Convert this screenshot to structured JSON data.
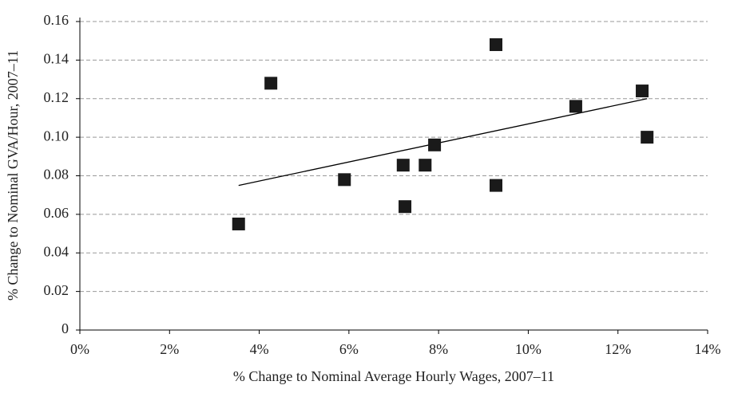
{
  "chart_data": {
    "type": "scatter",
    "x_label": "% Change to Nominal Average Hourly Wages, 2007–11",
    "y_label": "% Change to Nominal GVA/Hour, 2007–11",
    "x": [
      3.54,
      4.26,
      5.9,
      7.21,
      7.25,
      7.7,
      7.91,
      9.28,
      9.28,
      11.06,
      12.54,
      12.65
    ],
    "values": [
      0.055,
      0.128,
      0.078,
      0.0855,
      0.064,
      0.0855,
      0.096,
      0.148,
      0.075,
      0.116,
      0.124,
      0.1
    ],
    "color": "#1a1a1a",
    "trend_line": {
      "x": [
        3.54,
        12.65
      ],
      "y": [
        0.075,
        0.12
      ],
      "color": "#000000"
    },
    "xlim": [
      0,
      14
    ],
    "xticks": [
      {
        "value": 0,
        "label": "0%"
      },
      {
        "value": 2,
        "label": "2%"
      },
      {
        "value": 4,
        "label": "4%"
      },
      {
        "value": 6,
        "label": "6%"
      },
      {
        "value": 8,
        "label": "8%"
      },
      {
        "value": 10,
        "label": "10%"
      },
      {
        "value": 12,
        "label": "12%"
      },
      {
        "value": 14,
        "label": "14%"
      }
    ],
    "ylim": [
      0,
      0.16
    ],
    "yticks": [
      0,
      0.02,
      0.04,
      0.06,
      0.08,
      {
        "value": 0.1,
        "label": "0.10"
      },
      0.12,
      0.14,
      0.16
    ],
    "grid": true
  }
}
